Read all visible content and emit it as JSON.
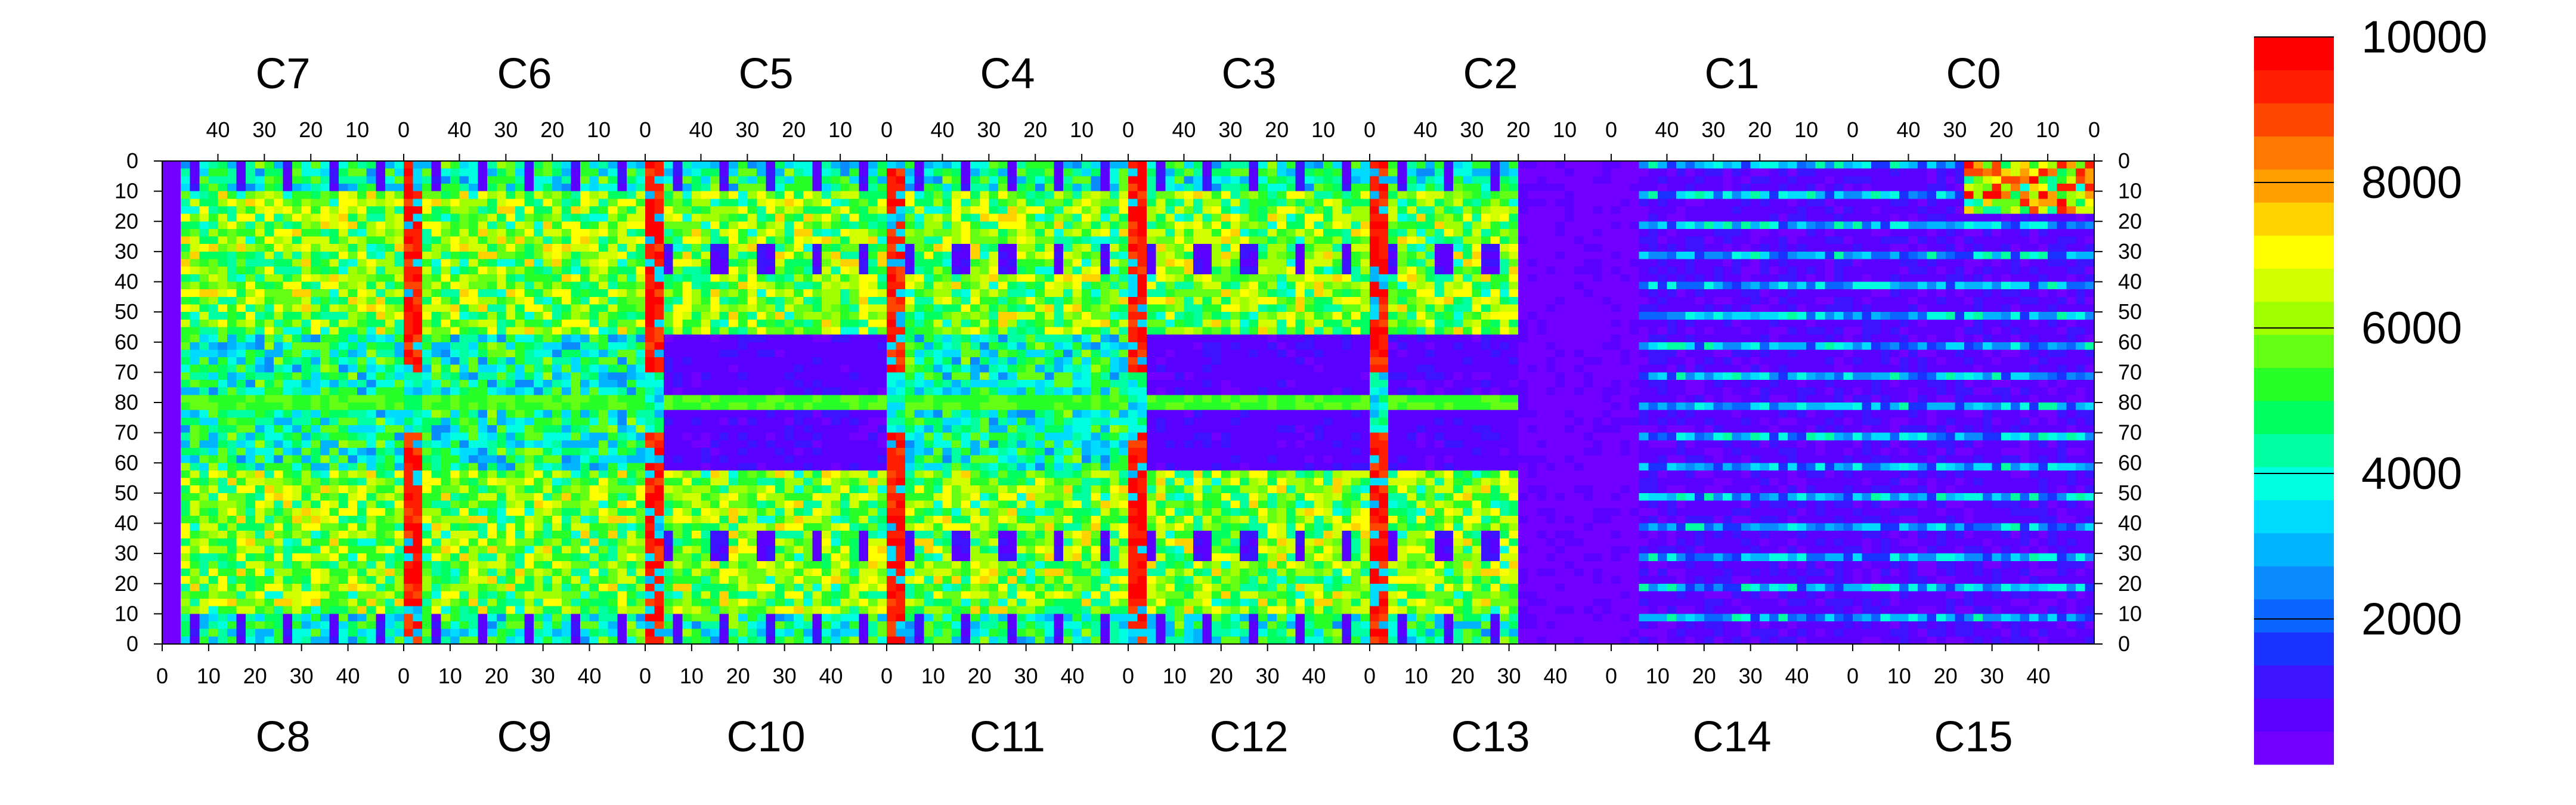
{
  "chart_data": {
    "type": "heatmap",
    "title": "",
    "top_chips": [
      "C7",
      "C6",
      "C5",
      "C4",
      "C3",
      "C2",
      "C1",
      "C0"
    ],
    "bottom_chips": [
      "C8",
      "C9",
      "C10",
      "C11",
      "C12",
      "C13",
      "C14",
      "C15"
    ],
    "column_ticks_top": [
      "40",
      "30",
      "20",
      "10",
      "0"
    ],
    "column_ticks_bottom": [
      "0",
      "10",
      "20",
      "30",
      "40"
    ],
    "row_ticks_left": [
      "0",
      "10",
      "20",
      "30",
      "40",
      "50",
      "60",
      "70",
      "80",
      "70",
      "60",
      "50",
      "40",
      "30",
      "20",
      "10",
      "0"
    ],
    "row_ticks_right": [
      "0",
      "10",
      "20",
      "30",
      "40",
      "50",
      "60",
      "70",
      "80",
      "70",
      "60",
      "50",
      "40",
      "30",
      "20",
      "10",
      "0"
    ],
    "columns_per_chip": 52,
    "rows_per_half": 80,
    "z_range": [
      0,
      10000
    ],
    "colorbar": {
      "ticks": [
        "2000",
        "4000",
        "6000",
        "8000",
        "10000"
      ],
      "tick_values": [
        2000,
        4000,
        6000,
        8000,
        10000
      ],
      "palette": [
        "#7200ff",
        "#5a00ff",
        "#3c14ff",
        "#1a32ff",
        "#0a64ff",
        "#0a8cff",
        "#00b4ff",
        "#00dcff",
        "#00ffe0",
        "#00ffa0",
        "#00ff60",
        "#28ff28",
        "#64ff14",
        "#a0ff00",
        "#d2ff00",
        "#ffff00",
        "#ffd200",
        "#ffa000",
        "#ff7800",
        "#ff4600",
        "#ff1e00",
        "#ff0000"
      ]
    },
    "dead_region_chip": "C13",
    "saturated_columns_value": 10000,
    "center_row_value": 5000,
    "typical_active_value": 5000,
    "typical_idle_value": 300
  }
}
